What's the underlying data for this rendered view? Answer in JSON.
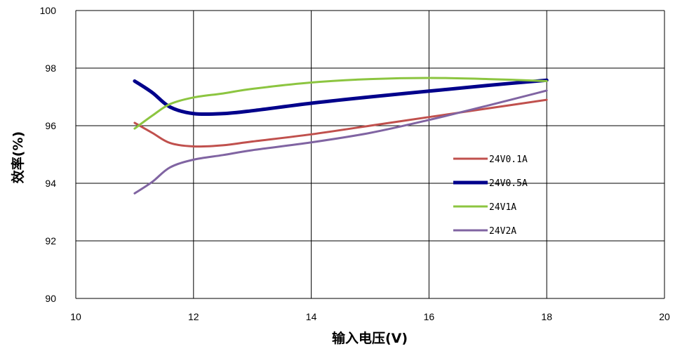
{
  "chart_data": {
    "type": "line",
    "xlabel": "输入电压(V)",
    "ylabel": "效率(%)",
    "xlim": [
      10,
      20
    ],
    "ylim": [
      90,
      100
    ],
    "x_ticks": [
      10,
      12,
      14,
      16,
      18,
      20
    ],
    "y_ticks": [
      90,
      92,
      94,
      96,
      98,
      100
    ],
    "grid": true,
    "legend_position": "right",
    "series": [
      {
        "name": "24V0.1A",
        "color": "#c0504d",
        "x": [
          11,
          11.3,
          11.6,
          12,
          12.5,
          13,
          14,
          15,
          16,
          17,
          18
        ],
        "y": [
          96.1,
          95.75,
          95.4,
          95.28,
          95.32,
          95.45,
          95.7,
          96.0,
          96.3,
          96.6,
          96.9
        ]
      },
      {
        "name": "24V0.5A",
        "color": "#00008b",
        "x": [
          11,
          11.3,
          11.6,
          12,
          12.5,
          13,
          14,
          15,
          16,
          17,
          18
        ],
        "y": [
          97.55,
          97.15,
          96.65,
          96.42,
          96.42,
          96.52,
          96.78,
          97.0,
          97.2,
          97.4,
          97.58
        ]
      },
      {
        "name": "24V1A",
        "color": "#8cc540",
        "x": [
          11,
          11.3,
          11.6,
          12,
          12.5,
          13,
          14,
          15,
          16,
          17,
          18
        ],
        "y": [
          95.9,
          96.35,
          96.75,
          96.98,
          97.12,
          97.28,
          97.5,
          97.62,
          97.66,
          97.62,
          97.55
        ]
      },
      {
        "name": "24V2A",
        "color": "#8064a2",
        "x": [
          11,
          11.3,
          11.6,
          12,
          12.5,
          13,
          14,
          15,
          16,
          17,
          18
        ],
        "y": [
          93.65,
          94.05,
          94.55,
          94.82,
          94.98,
          95.15,
          95.42,
          95.75,
          96.2,
          96.7,
          97.22
        ]
      }
    ]
  }
}
